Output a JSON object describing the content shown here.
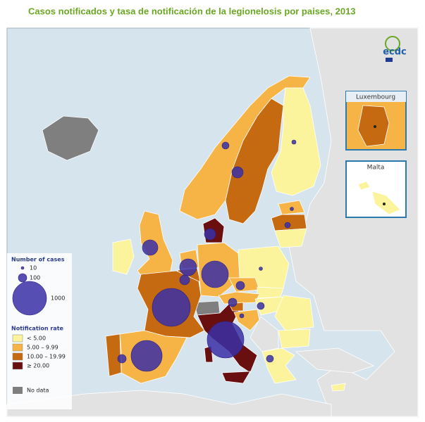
{
  "title": "Casos notificados y tasa de notificación de la legionelosis por paises, 2013",
  "logo": "ecdc",
  "insets": {
    "luxembourg": "Luxembourg",
    "malta": "Malta"
  },
  "legend": {
    "cases_title": "Number of cases",
    "sizes": [
      "10",
      "100",
      "1000"
    ],
    "rate_title": "Notification rate",
    "rates": [
      {
        "label": "< 5.00",
        "color": "#fbf49c"
      },
      {
        "label": "5.00 – 9.99",
        "color": "#f5b445"
      },
      {
        "label": "10.00 – 19.99",
        "color": "#c66a12"
      },
      {
        "label": "≥ 20.00",
        "color": "#6a0f0f"
      }
    ],
    "no_data": {
      "label": "No data",
      "color": "#7f7f7f"
    }
  }
}
